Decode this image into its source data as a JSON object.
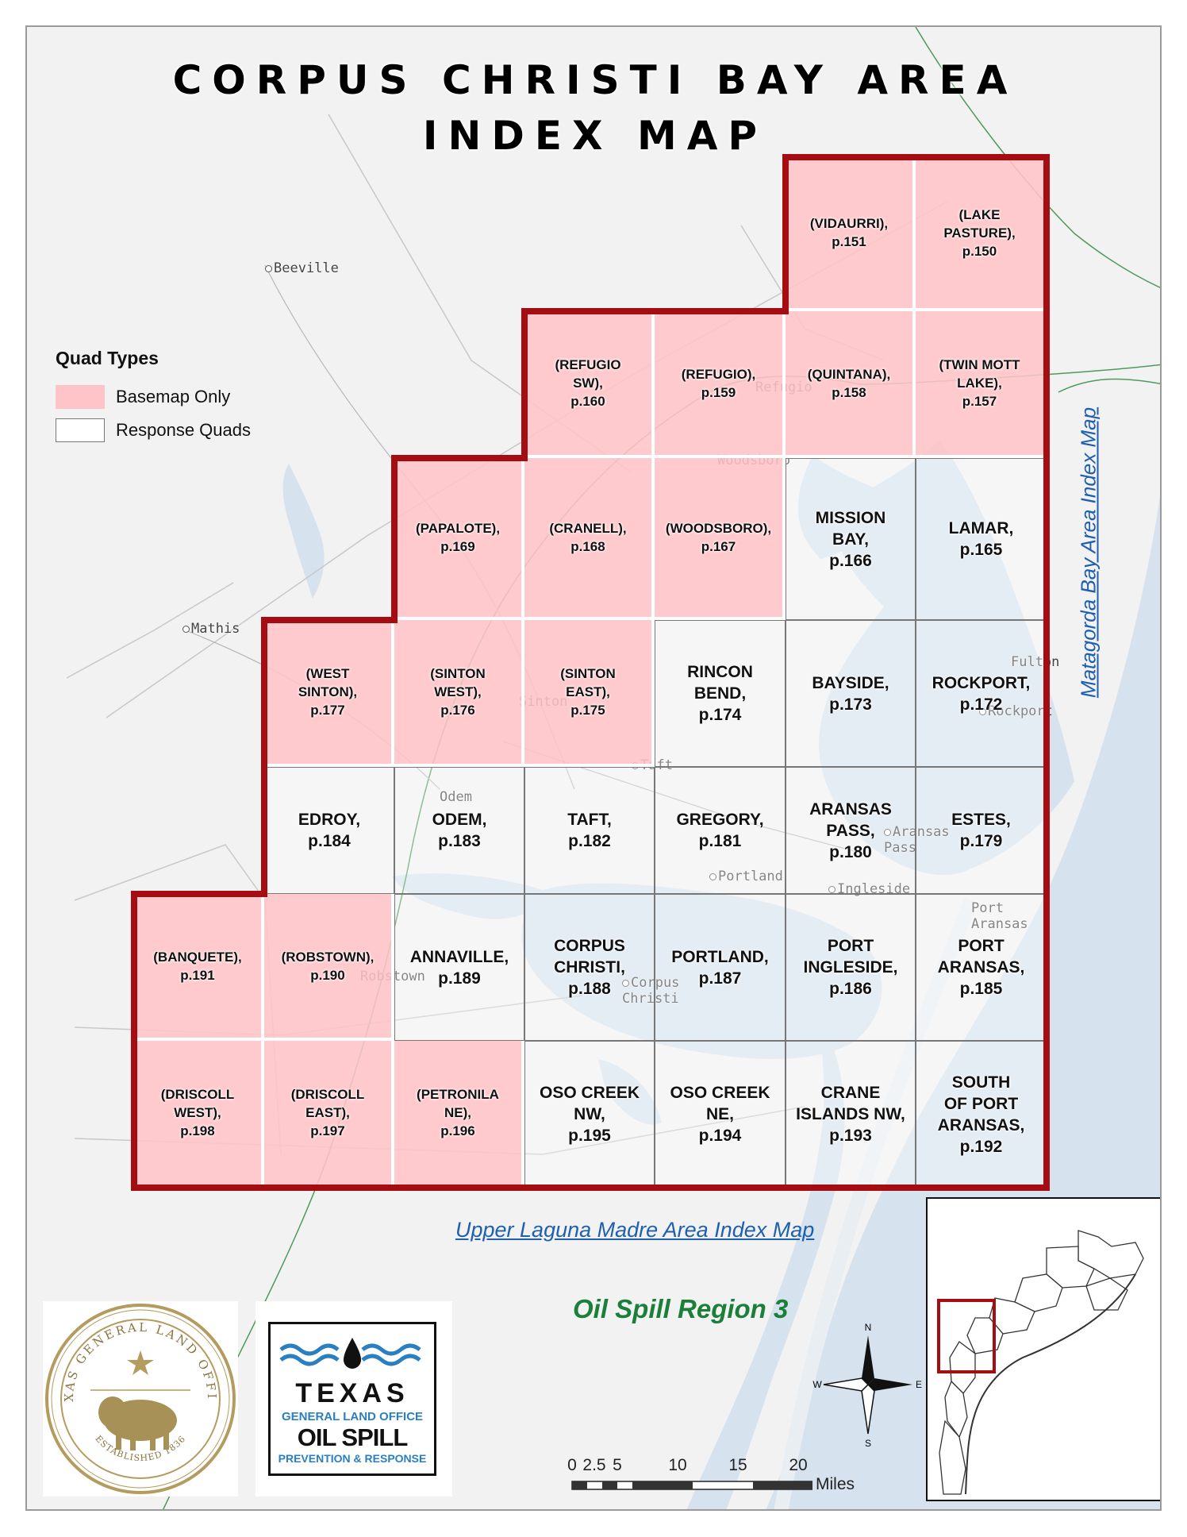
{
  "title": {
    "line1": "CORPUS CHRISTI BAY AREA",
    "line2": "INDEX MAP"
  },
  "legend": {
    "title": "Quad Types",
    "items": [
      {
        "label": "Basemap Only",
        "color": "#ffc4c7"
      },
      {
        "label": "Response Quads",
        "color": "#ffffff"
      }
    ]
  },
  "colors": {
    "boundary": "#a50d12",
    "water": "#d6e3ee",
    "land": "#f2f2f2",
    "basemap_fill": "#ffc4c7",
    "link": "#1f5fb0",
    "region": "#1b7f3a"
  },
  "quads": [
    {
      "label": "(VIDAURRI),\np.151",
      "type": "basemap",
      "page": 151
    },
    {
      "label": "(LAKE\nPASTURE),\np.150",
      "type": "basemap",
      "page": 150
    },
    {
      "label": "(REFUGIO\nSW),\np.160",
      "type": "basemap",
      "page": 160
    },
    {
      "label": "(REFUGIO),\np.159",
      "type": "basemap",
      "page": 159
    },
    {
      "label": "(QUINTANA),\np.158",
      "type": "basemap",
      "page": 158
    },
    {
      "label": "(TWIN MOTT\nLAKE),\np.157",
      "type": "basemap",
      "page": 157
    },
    {
      "label": "(PAPALOTE),\np.169",
      "type": "basemap",
      "page": 169
    },
    {
      "label": "(CRANELL),\np.168",
      "type": "basemap",
      "page": 168
    },
    {
      "label": "(WOODSBORO),\np.167",
      "type": "basemap",
      "page": 167
    },
    {
      "label": "MISSION\nBAY,\np.166",
      "type": "response",
      "page": 166
    },
    {
      "label": "LAMAR,\np.165",
      "type": "response",
      "page": 165
    },
    {
      "label": "(WEST\nSINTON),\np.177",
      "type": "basemap",
      "page": 177
    },
    {
      "label": "(SINTON\nWEST),\np.176",
      "type": "basemap",
      "page": 176
    },
    {
      "label": "(SINTON\nEAST),\np.175",
      "type": "basemap",
      "page": 175
    },
    {
      "label": "RINCON\nBEND,\np.174",
      "type": "response",
      "page": 174
    },
    {
      "label": "BAYSIDE,\np.173",
      "type": "response",
      "page": 173
    },
    {
      "label": "ROCKPORT,\np.172",
      "type": "response",
      "page": 172
    },
    {
      "label": "EDROY,\np.184",
      "type": "response",
      "page": 184
    },
    {
      "label": "ODEM,\np.183",
      "type": "response",
      "page": 183
    },
    {
      "label": "TAFT,\np.182",
      "type": "response",
      "page": 182
    },
    {
      "label": "GREGORY,\np.181",
      "type": "response",
      "page": 181
    },
    {
      "label": "ARANSAS\nPASS,\np.180",
      "type": "response",
      "page": 180
    },
    {
      "label": "ESTES,\np.179",
      "type": "response",
      "page": 179
    },
    {
      "label": "(BANQUETE),\np.191",
      "type": "basemap",
      "page": 191
    },
    {
      "label": "(ROBSTOWN),\np.190",
      "type": "basemap",
      "page": 190
    },
    {
      "label": "ANNAVILLE,\np.189",
      "type": "response",
      "page": 189
    },
    {
      "label": "CORPUS\nCHRISTI,\np.188",
      "type": "response",
      "page": 188
    },
    {
      "label": "PORTLAND,\np.187",
      "type": "response",
      "page": 187
    },
    {
      "label": "PORT\nINGLESIDE,\np.186",
      "type": "response",
      "page": 186
    },
    {
      "label": "PORT\nARANSAS,\np.185",
      "type": "response",
      "page": 185
    },
    {
      "label": "(DRISCOLL\nWEST),\np.198",
      "type": "basemap",
      "page": 198
    },
    {
      "label": "(DRISCOLL\nEAST),\np.197",
      "type": "basemap",
      "page": 197
    },
    {
      "label": "(PETRONILA\nNE),\np.196",
      "type": "basemap",
      "page": 196
    },
    {
      "label": "OSO CREEK\nNW,\np.195",
      "type": "response",
      "page": 195
    },
    {
      "label": "OSO CREEK\nNE,\np.194",
      "type": "response",
      "page": 194
    },
    {
      "label": "CRANE\nISLANDS NW,\np.193",
      "type": "response",
      "page": 193
    },
    {
      "label": "SOUTH\nOF PORT\nARANSAS,\np.192",
      "type": "response",
      "page": 192
    }
  ],
  "places": [
    "Beeville",
    "Mathis",
    "Refugio",
    "Woodsboro",
    "Sinton",
    "Taft",
    "Odem",
    "Portland",
    "Ingleside",
    "Aransas\nPass",
    "Rockport",
    "Fulton",
    "Port\nAransas",
    "Robstown",
    "Corpus\nChristi"
  ],
  "links": {
    "north_east": "Matagorda Bay Area Index Map",
    "south": "Upper Laguna Madre Area Index Map"
  },
  "region": "Oil Spill Region 3",
  "seal_text": {
    "ring_top": "TEXAS GENERAL LAND OFFICE",
    "ring_bottom": "ESTABLISHED 1836"
  },
  "logo": {
    "line1": "TEXAS",
    "line2": "GENERAL LAND OFFICE",
    "line3": "OIL SPILL",
    "line4": "PREVENTION & RESPONSE"
  },
  "scale": {
    "ticks": [
      "0",
      "2.5",
      "5",
      "10",
      "15",
      "20"
    ],
    "unit": "Miles"
  },
  "compass": {
    "n": "N",
    "s": "S",
    "e": "E",
    "w": "W"
  }
}
